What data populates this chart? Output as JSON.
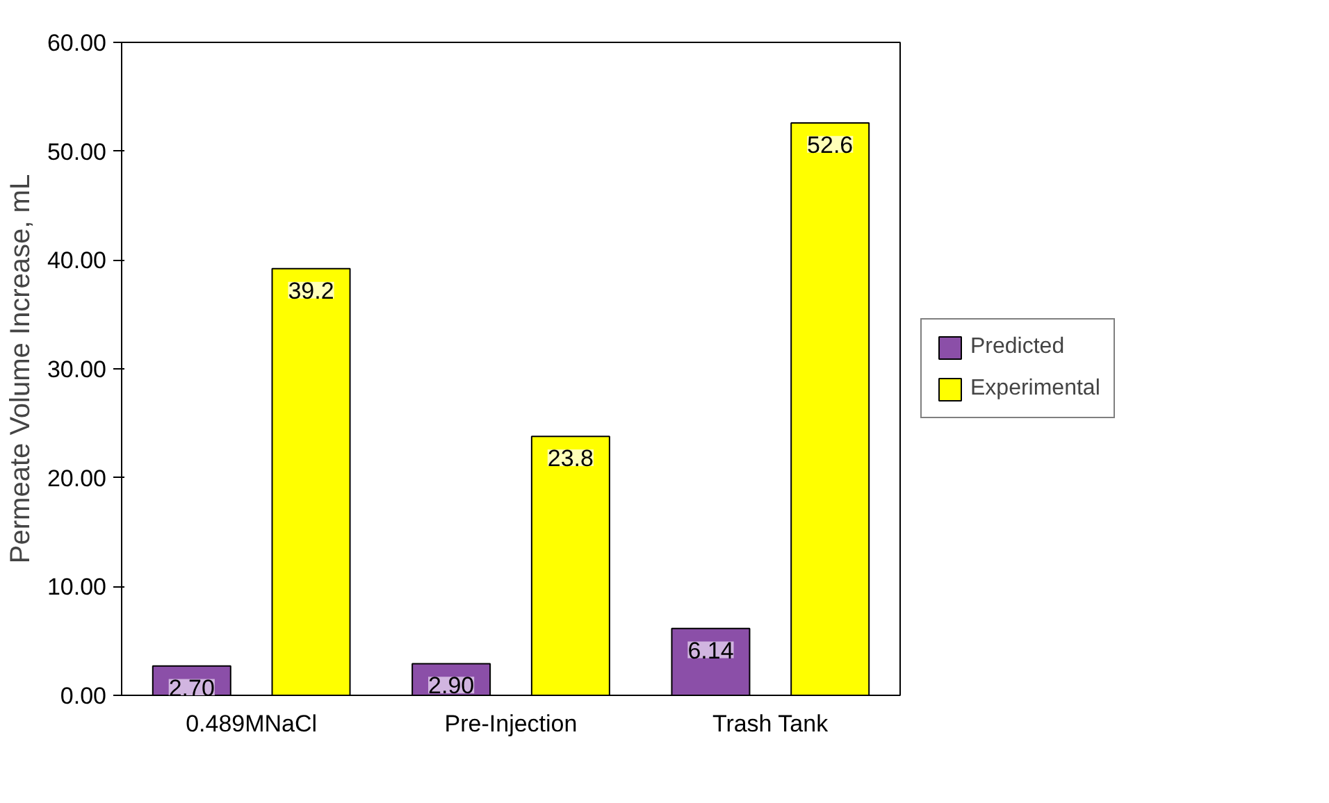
{
  "chart_data": {
    "type": "bar",
    "ylabel": "Permeate Volume Increase, mL",
    "categories": [
      "0.489MNaCl",
      "Pre-Injection",
      "Trash Tank"
    ],
    "series": [
      {
        "name": "Predicted",
        "color": "#8b4fa8",
        "values": [
          2.7,
          2.9,
          6.14
        ],
        "value_labels": [
          "2.70",
          "2.90",
          "6.14"
        ]
      },
      {
        "name": "Experimental",
        "color": "#ffff00",
        "values": [
          39.2,
          23.8,
          52.6
        ],
        "value_labels": [
          "39.2",
          "23.8",
          "52.6"
        ]
      }
    ],
    "ylim": [
      0,
      60
    ],
    "yticks": [
      {
        "value": 0,
        "label": "0.00"
      },
      {
        "value": 10,
        "label": "10.00"
      },
      {
        "value": 20,
        "label": "20.00"
      },
      {
        "value": 30,
        "label": "30.00"
      },
      {
        "value": 40,
        "label": "40.00"
      },
      {
        "value": 50,
        "label": "50.00"
      },
      {
        "value": 60,
        "label": "60.00"
      }
    ],
    "grid": false,
    "legend": "right"
  }
}
